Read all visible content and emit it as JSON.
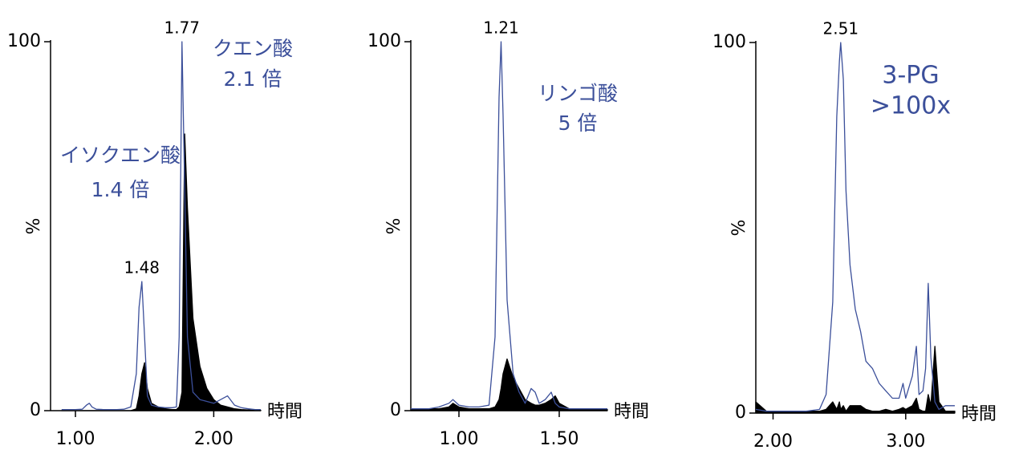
{
  "chart_data": [
    {
      "type": "line",
      "x_label": "時間",
      "y_label": "%",
      "xlim": [
        0.82,
        2.34
      ],
      "xticks": [
        {
          "value": 1,
          "label": "1.00"
        },
        {
          "value": 2,
          "label": "2.00"
        }
      ],
      "ylim": [
        0,
        100
      ],
      "yticks": [
        0,
        100
      ],
      "x": [
        0.9,
        0.95,
        1.0,
        1.05,
        1.08,
        1.1,
        1.12,
        1.15,
        1.2,
        1.25,
        1.3,
        1.35,
        1.4,
        1.44,
        1.46,
        1.48,
        1.5,
        1.52,
        1.55,
        1.6,
        1.65,
        1.7,
        1.73,
        1.75,
        1.77,
        1.79,
        1.81,
        1.85,
        1.9,
        1.95,
        2.0,
        2.05,
        2.1,
        2.15,
        2.2,
        2.25,
        2.3,
        2.34
      ],
      "series": [
        {
          "color": "#3b4f9a",
          "values": [
            0.3,
            0.3,
            0.3,
            0.4,
            1.5,
            2,
            1,
            0.4,
            0.3,
            0.3,
            0.3,
            0.4,
            1,
            10,
            28,
            35,
            20,
            4,
            1.5,
            1,
            0.8,
            0.8,
            1,
            20,
            100,
            60,
            20,
            5,
            3,
            2.5,
            2,
            3,
            4,
            1.5,
            0.8,
            0.5,
            0.3,
            0.3
          ]
        },
        {
          "color": "#000000",
          "fill": true,
          "values": [
            0,
            0,
            0,
            0,
            0,
            0,
            0,
            0,
            0,
            0,
            0,
            0,
            0,
            0.5,
            4,
            10,
            13,
            6,
            2,
            1,
            0.5,
            0.3,
            0.3,
            1,
            5,
            75,
            55,
            25,
            12,
            6,
            3,
            1.5,
            1,
            0.5,
            0.3,
            0.2,
            0.1,
            0.1
          ]
        }
      ],
      "peak_labels": [
        1.77,
        1.48
      ],
      "annotations": [
        [
          "クエン酸",
          "2.1 倍"
        ],
        [
          "イソクエン酸",
          "1.4 倍"
        ]
      ]
    },
    {
      "type": "line",
      "x_label": "時間",
      "y_label": "%",
      "xlim": [
        0.76,
        1.74
      ],
      "xticks": [
        {
          "value": 1,
          "label": "1.00"
        },
        {
          "value": 1.5,
          "label": "1.50"
        }
      ],
      "ylim": [
        0,
        100
      ],
      "yticks": [
        0,
        100
      ],
      "x": [
        0.76,
        0.8,
        0.85,
        0.9,
        0.95,
        0.97,
        1.0,
        1.05,
        1.1,
        1.15,
        1.18,
        1.2,
        1.21,
        1.22,
        1.24,
        1.27,
        1.3,
        1.33,
        1.36,
        1.38,
        1.4,
        1.43,
        1.46,
        1.48,
        1.5,
        1.55,
        1.6,
        1.65,
        1.7,
        1.74
      ],
      "series": [
        {
          "color": "#3b4f9a",
          "values": [
            0.5,
            0.5,
            0.5,
            1,
            2,
            3,
            1.5,
            1,
            1,
            1.5,
            20,
            85,
            100,
            80,
            30,
            10,
            5,
            2,
            6,
            5,
            2,
            3,
            5,
            2,
            1,
            0.5,
            0.5,
            0.5,
            0.5,
            0.5
          ]
        },
        {
          "color": "#000000",
          "fill": true,
          "values": [
            0.3,
            0.3,
            0.5,
            0.5,
            1,
            2,
            1,
            0.5,
            0.5,
            0.5,
            1,
            3,
            6,
            10,
            14,
            9,
            6,
            3,
            2,
            1.5,
            1.5,
            2,
            3,
            4,
            2,
            0.5,
            0.3,
            0.3,
            0.3,
            0.3
          ]
        }
      ],
      "peak_labels": [
        1.21
      ],
      "annotations": [
        [
          "リンゴ酸",
          "5 倍"
        ]
      ]
    },
    {
      "type": "line",
      "x_label": "時間",
      "y_label": "%",
      "xlim": [
        1.87,
        3.37
      ],
      "xticks": [
        {
          "value": 2,
          "label": "2.00"
        },
        {
          "value": 3,
          "label": "3.00"
        }
      ],
      "ylim": [
        0,
        100
      ],
      "yticks": [
        0,
        100
      ],
      "x": [
        1.87,
        1.95,
        2.05,
        2.15,
        2.25,
        2.35,
        2.4,
        2.45,
        2.48,
        2.5,
        2.51,
        2.53,
        2.55,
        2.58,
        2.62,
        2.66,
        2.7,
        2.75,
        2.8,
        2.85,
        2.9,
        2.95,
        2.98,
        3.0,
        3.05,
        3.08,
        3.1,
        3.13,
        3.15,
        3.17,
        3.19,
        3.22,
        3.25,
        3.3,
        3.37
      ],
      "series": [
        {
          "color": "#3b4f9a",
          "values": [
            1,
            0.5,
            0.5,
            0.5,
            0.5,
            1,
            5,
            30,
            80,
            95,
            100,
            90,
            60,
            40,
            28,
            22,
            14,
            12,
            8,
            6,
            4,
            4,
            8,
            4,
            10,
            18,
            5,
            6,
            12,
            35,
            15,
            3,
            1,
            2,
            2
          ]
        },
        {
          "color": "#000000",
          "fill": true,
          "values": [
            3,
            0.5,
            0.5,
            0.5,
            0.5,
            0.5,
            1,
            3,
            1,
            3,
            1,
            2,
            0.5,
            2,
            2,
            2,
            1,
            0.5,
            0.5,
            1,
            0.5,
            1,
            1.5,
            1,
            2,
            4,
            1,
            0.5,
            0.5,
            5,
            2,
            18,
            3,
            0.5,
            0.5
          ]
        }
      ],
      "peak_labels": [
        2.51
      ],
      "annotations": [
        [
          "3-PG",
          ">100x"
        ]
      ]
    }
  ]
}
